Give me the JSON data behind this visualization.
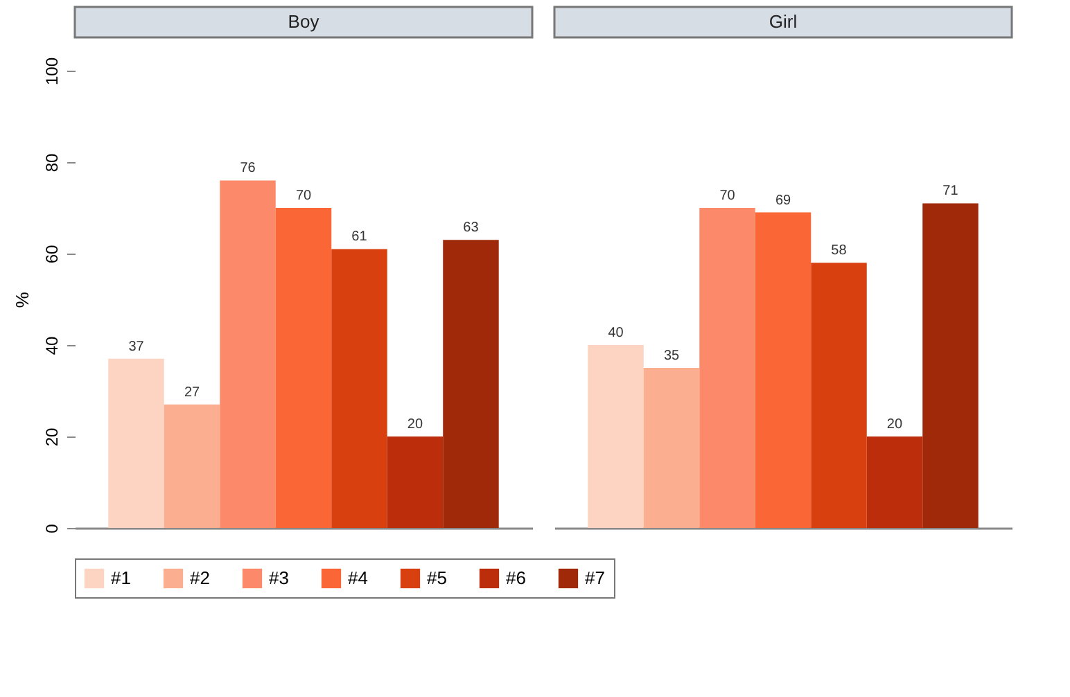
{
  "chart_data": {
    "type": "bar",
    "categories": [
      "Boy",
      "Girl"
    ],
    "ylabel": "%",
    "ylim": [
      0,
      100
    ],
    "yticks": [
      0,
      20,
      40,
      60,
      80,
      100
    ],
    "legend": "bottom",
    "data_labels": true,
    "series": [
      {
        "name": "#1",
        "color": "#fdd4c2",
        "values": [
          37,
          40
        ]
      },
      {
        "name": "#2",
        "color": "#fcae91",
        "values": [
          27,
          35
        ]
      },
      {
        "name": "#3",
        "color": "#fc8a6a",
        "values": [
          76,
          70
        ]
      },
      {
        "name": "#4",
        "color": "#fb6636",
        "values": [
          70,
          69
        ]
      },
      {
        "name": "#5",
        "color": "#d9400f",
        "values": [
          61,
          58
        ]
      },
      {
        "name": "#6",
        "color": "#bc2d0c",
        "values": [
          20,
          20
        ]
      },
      {
        "name": "#7",
        "color": "#a0290a",
        "values": [
          63,
          71
        ]
      }
    ]
  }
}
